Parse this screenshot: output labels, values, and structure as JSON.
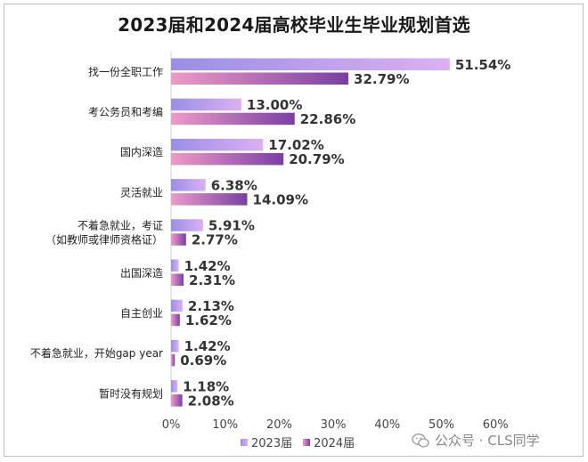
{
  "chart_data": {
    "type": "bar",
    "orientation": "horizontal",
    "title": "2023届和2024届高校毕业生毕业规划首选",
    "categories": [
      [
        "找一份全职工作"
      ],
      [
        "考公务员和考编"
      ],
      [
        "国内深造"
      ],
      [
        "灵活就业"
      ],
      [
        "不着急就业，考证",
        "（如教师或律师资格证）"
      ],
      [
        "出国深造"
      ],
      [
        "自主创业"
      ],
      [
        "不着急就业，开始gap year"
      ],
      [
        "暂时没有规划"
      ]
    ],
    "series": [
      {
        "name": "2023届",
        "values": [
          51.54,
          13.0,
          17.02,
          6.38,
          5.91,
          1.42,
          2.13,
          1.42,
          1.18
        ],
        "labels": [
          "51.54%",
          "13.00%",
          "17.02%",
          "6.38%",
          "5.91%",
          "1.42%",
          "2.13%",
          "1.42%",
          "1.18%"
        ],
        "color_start": "#9a8ee6",
        "color_end": "#dcb0f2"
      },
      {
        "name": "2024届",
        "values": [
          32.79,
          22.86,
          20.79,
          14.09,
          2.77,
          2.31,
          1.62,
          0.69,
          2.08
        ],
        "labels": [
          "32.79%",
          "22.86%",
          "20.79%",
          "14.09%",
          "2.77%",
          "2.31%",
          "1.62%",
          "0.69%",
          "2.08%"
        ],
        "color_start": "#ee9ac8",
        "color_end": "#7a3fa4"
      }
    ],
    "xlim": [
      0,
      60
    ],
    "x_ticks": [
      "0%",
      "10%",
      "20%",
      "30%",
      "40%",
      "50%",
      "60%"
    ],
    "legend_position": "bottom",
    "grid": false
  },
  "watermark": {
    "text": "公众号 · CLS同学"
  }
}
